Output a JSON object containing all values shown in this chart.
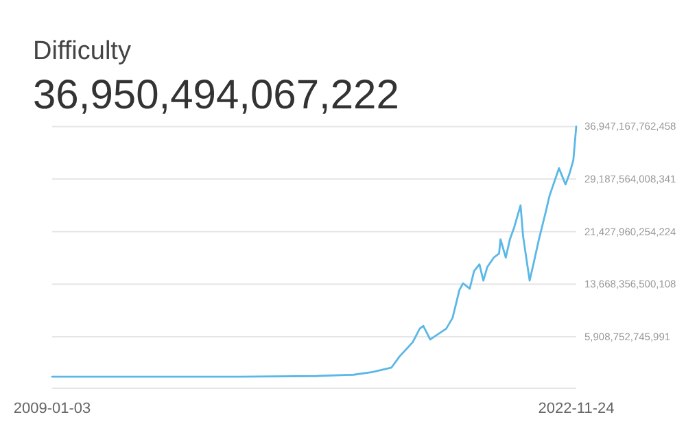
{
  "chart_data": {
    "type": "line",
    "title": "Difficulty",
    "subtitle": "36,950,494,067,222",
    "x": [
      "2009-01-03",
      "2012-01-01",
      "2014-01-01",
      "2016-01-01",
      "2017-01-01",
      "2017-07-01",
      "2018-01-01",
      "2018-03-20",
      "2018-07-25",
      "2018-10-01",
      "2018-11-05",
      "2019-01-10",
      "2019-06-15",
      "2019-08-15",
      "2019-10-20",
      "2019-11-24",
      "2020-01-28",
      "2020-03-10",
      "2020-05-01",
      "2020-06-08",
      "2020-07-16",
      "2020-09-17",
      "2020-11-07",
      "2020-11-21",
      "2021-01-11",
      "2021-02-20",
      "2021-03-30",
      "2021-06-03",
      "2021-06-28",
      "2021-08-30",
      "2021-10-08",
      "2021-11-28",
      "2022-02-01",
      "2022-03-10",
      "2022-06-10",
      "2022-08-12",
      "2022-09-20",
      "2022-10-27",
      "2022-11-24"
    ],
    "series": [
      {
        "color": "#5ab8e6",
        "values": [
          0,
          0,
          0,
          100000000000,
          300000000000,
          700000000000,
          1360000000000,
          3000000000000,
          5100000000000,
          7100000000000,
          7500000000000,
          5500000000000,
          7100000000000,
          8700000000000,
          12800000000000,
          13800000000000,
          13000000000000,
          15600000000000,
          16600000000000,
          14200000000000,
          16200000000000,
          17600000000000,
          18200000000000,
          20300000000000,
          17600000000000,
          20300000000000,
          21900000000000,
          25300000000000,
          20700000000000,
          14200000000000,
          16800000000000,
          20300000000000,
          24300000000000,
          26700000000000,
          30800000000000,
          28400000000000,
          30000000000000,
          32000000000000,
          36950494067222
        ]
      }
    ],
    "xlim": [
      "2009-01-03",
      "2022-11-24"
    ],
    "xticks": [
      {
        "value": "2009-01-03",
        "label": "2009-01-03"
      },
      {
        "value": "2022-11-24",
        "label": "2022-11-24"
      }
    ],
    "ylim": [
      -1700000000000,
      37000000000000
    ],
    "yticks": [
      {
        "value": 5908752745991,
        "label": "5,908,752,745,991"
      },
      {
        "value": 13668356500108,
        "label": "13,668,356,500,108"
      },
      {
        "value": 21427960254224,
        "label": "21,427,960,254,224"
      },
      {
        "value": 29187564008341,
        "label": "29,187,564,008,341"
      },
      {
        "value": 36947167762458,
        "label": "36,947,167,762,458"
      }
    ],
    "grid": "y",
    "line_style": "solid",
    "marker": "none"
  }
}
